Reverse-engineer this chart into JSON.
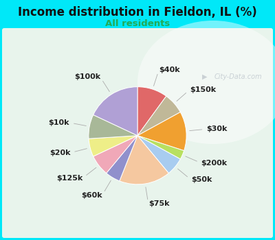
{
  "title": "Income distribution in Fieldon, IL (%)",
  "subtitle": "All residents",
  "title_color": "#111111",
  "subtitle_color": "#22aa55",
  "bg_cyan": "#00e8f8",
  "bg_inner": "#e0f0e8",
  "watermark": "City-Data.com",
  "labels": [
    "$100k",
    "$10k",
    "$20k",
    "$125k",
    "$60k",
    "$75k",
    "$50k",
    "$200k",
    "$30k",
    "$150k",
    "$40k"
  ],
  "values": [
    18,
    8,
    6,
    7,
    5,
    17,
    6,
    3,
    13,
    7,
    10
  ],
  "colors": [
    "#b0a0d5",
    "#a8b898",
    "#eeee88",
    "#f0a8b8",
    "#9090cc",
    "#f5c8a0",
    "#a8ccf0",
    "#b8e060",
    "#f0a030",
    "#c0b898",
    "#e06868"
  ],
  "startangle": 90,
  "label_fontsize": 8.0,
  "label_color": "#222222"
}
